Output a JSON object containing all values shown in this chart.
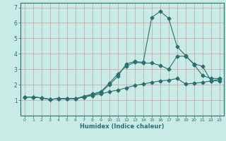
{
  "xlabel": "Humidex (Indice chaleur)",
  "bg_color": "#c8ebe6",
  "grid_color": "#c8a0a0",
  "line_color": "#2d6e6e",
  "line1_x": [
    0,
    1,
    2,
    3,
    4,
    5,
    6,
    7,
    8,
    9,
    10,
    11,
    12,
    13,
    14,
    15,
    16,
    17,
    18,
    19,
    20,
    21,
    22,
    23
  ],
  "line1_y": [
    1.2,
    1.2,
    1.15,
    1.05,
    1.1,
    1.1,
    1.1,
    1.2,
    1.35,
    1.5,
    2.0,
    2.55,
    3.35,
    3.5,
    3.45,
    6.35,
    6.75,
    6.3,
    4.45,
    3.9,
    3.3,
    2.6,
    2.4,
    2.4
  ],
  "line2_x": [
    0,
    1,
    2,
    3,
    4,
    5,
    6,
    7,
    8,
    9,
    10,
    11,
    12,
    13,
    14,
    15,
    16,
    17,
    18,
    19,
    20,
    21,
    22,
    23
  ],
  "line2_y": [
    1.2,
    1.2,
    1.15,
    1.05,
    1.1,
    1.1,
    1.1,
    1.25,
    1.4,
    1.55,
    2.1,
    2.7,
    3.2,
    3.45,
    3.4,
    3.4,
    3.25,
    3.0,
    3.85,
    3.85,
    3.35,
    3.2,
    2.25,
    2.25
  ],
  "line3_x": [
    0,
    1,
    2,
    3,
    4,
    5,
    6,
    7,
    8,
    9,
    10,
    11,
    12,
    13,
    14,
    15,
    16,
    17,
    18,
    19,
    20,
    21,
    22,
    23
  ],
  "line3_y": [
    1.2,
    1.2,
    1.15,
    1.05,
    1.1,
    1.1,
    1.1,
    1.2,
    1.3,
    1.4,
    1.55,
    1.65,
    1.8,
    1.95,
    2.05,
    2.15,
    2.25,
    2.3,
    2.4,
    2.05,
    2.1,
    2.15,
    2.25,
    2.35
  ],
  "xlim": [
    -0.5,
    23.5
  ],
  "ylim": [
    0,
    7.3
  ],
  "yticks": [
    1,
    2,
    3,
    4,
    5,
    6,
    7
  ],
  "xticks": [
    0,
    1,
    2,
    3,
    4,
    5,
    6,
    7,
    8,
    9,
    10,
    11,
    12,
    13,
    14,
    15,
    16,
    17,
    18,
    19,
    20,
    21,
    22,
    23
  ]
}
